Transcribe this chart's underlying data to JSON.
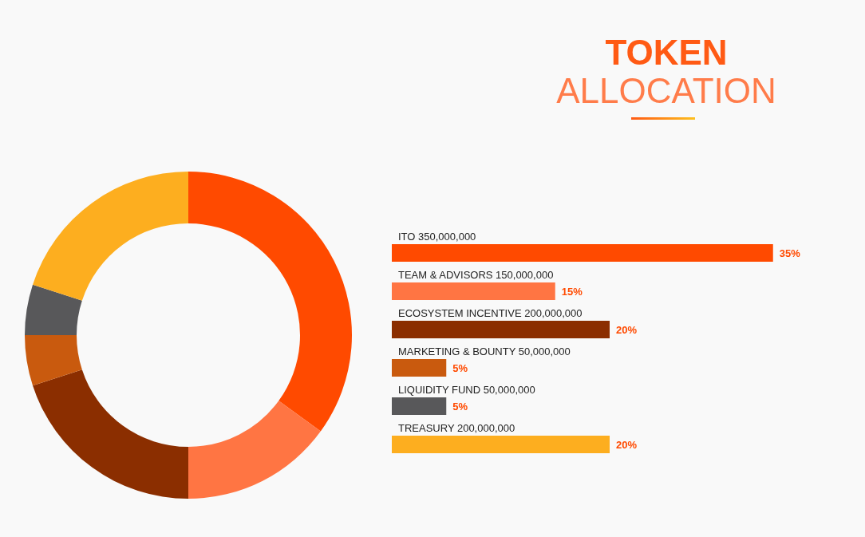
{
  "chart_data": [
    {
      "type": "donut",
      "categories": [
        null,
        null,
        null,
        null,
        null,
        null
      ],
      "values": [
        35,
        15,
        20,
        5,
        5,
        20
      ],
      "colors": [
        "#ff4a00",
        "#ff7543",
        "#8b2e00",
        "#c95a0e",
        "#58585a",
        "#fdae1f"
      ]
    },
    {
      "type": "bar",
      "orientation": "horizontal",
      "title": "TOKEN",
      "subtitle": "ALLOCATION",
      "categories": [
        "ITO 350,000,000",
        "TEAM & ADVISORS 150,000,000",
        "ECOSYSTEM INCENTIVE 200,000,000",
        "MARKETING & BOUNTY 50,000,000",
        "LIQUIDITY FUND 50,000,000",
        "TREASURY 200,000,000"
      ],
      "values": [
        35,
        15,
        20,
        5,
        5,
        20
      ],
      "colors": [
        "#ff4a00",
        "#ff7543",
        "#8b2e00",
        "#c95a0e",
        "#58585a",
        "#fdae1f"
      ],
      "value_labels": [
        "35%",
        "15%",
        "20%",
        "5%",
        "5%",
        "20%"
      ]
    }
  ]
}
